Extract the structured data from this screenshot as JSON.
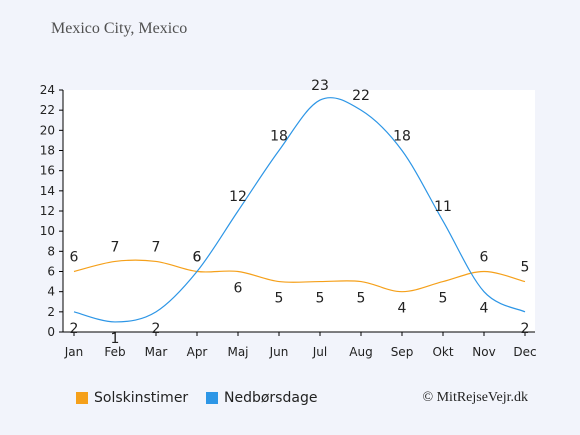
{
  "chart_data": {
    "type": "line",
    "title": "Mexico City, Mexico",
    "categories": [
      "Jan",
      "Feb",
      "Mar",
      "Apr",
      "Maj",
      "Jun",
      "Jul",
      "Aug",
      "Sep",
      "Okt",
      "Nov",
      "Dec"
    ],
    "series": [
      {
        "name": "Solskinstimer",
        "color": "#f5a01a",
        "values": [
          6,
          7,
          7,
          6,
          6,
          5,
          5,
          5,
          4,
          5,
          6,
          5
        ]
      },
      {
        "name": "Nedbørsdage",
        "color": "#2d96e6",
        "values": [
          2,
          1,
          2,
          6,
          12,
          18,
          23,
          22,
          18,
          11,
          4,
          2
        ]
      }
    ],
    "ylim": [
      0,
      24
    ],
    "yticks": [
      0,
      2,
      4,
      6,
      8,
      10,
      12,
      14,
      16,
      18,
      20,
      22,
      24
    ],
    "grid": false,
    "legend_position": "bottom",
    "credit": "© MitRejseVejr.dk"
  }
}
